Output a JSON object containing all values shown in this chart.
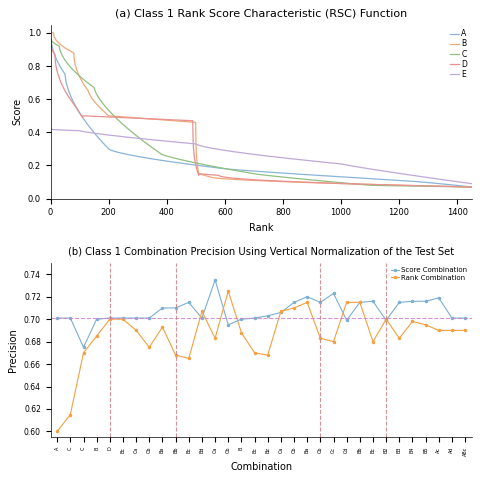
{
  "title_a": "(a) Class 1 Rank Score Characteristic (RSC) Function",
  "title_b": "(b) Class 1 Combination Precision Using Vertical Normalization of the Test Set",
  "rsc_xlabel": "Rank",
  "rsc_ylabel": "Score",
  "combo_xlabel": "Combination",
  "combo_ylabel": "Precision",
  "rsc_max_rank": 1450,
  "colors": {
    "A": "#8ab4d8",
    "B": "#f0a878",
    "C": "#90c080",
    "D": "#e89090",
    "E": "#c0a8d8"
  },
  "score_color": "#7bafd4",
  "rank_color": "#f4a040",
  "hline_y": 0.701,
  "hline_color": "#cc88cc",
  "vline_color": "#cc7777",
  "combo_labels": [
    "A",
    "C",
    "C",
    "B",
    "D",
    "Bc",
    "Ca",
    "Cb",
    "Ba",
    "Bb",
    "Bc",
    "Bd",
    "Ca",
    "Cb",
    "B",
    "Bc",
    "Bz",
    "Ca",
    "Cb",
    "Ba",
    "Cb",
    "Cc",
    "Cd",
    "Bb",
    "Bc",
    "B2",
    "B3",
    "B4",
    "B5",
    "Ac",
    "Ad",
    "ABc"
  ],
  "vline_positions": [
    4,
    9,
    20,
    25
  ],
  "score_vals": [
    0.701,
    0.701,
    0.675,
    0.7,
    0.701,
    0.701,
    0.701,
    0.701,
    0.71,
    0.71,
    0.715,
    0.701,
    0.735,
    0.695,
    0.7,
    0.701,
    0.703,
    0.706,
    0.715,
    0.72,
    0.715,
    0.723,
    0.699,
    0.715,
    0.716,
    0.699,
    0.715,
    0.716,
    0.716,
    0.719,
    0.701,
    0.701
  ],
  "rank_vals": [
    0.6,
    0.615,
    0.67,
    0.685,
    0.7,
    0.7,
    0.69,
    0.675,
    0.693,
    0.668,
    0.665,
    0.707,
    0.683,
    0.725,
    0.688,
    0.67,
    0.668,
    0.707,
    0.71,
    0.715,
    0.683,
    0.68,
    0.715,
    0.715,
    0.68,
    0.7,
    0.683,
    0.698,
    0.695,
    0.69,
    0.69,
    0.69
  ]
}
